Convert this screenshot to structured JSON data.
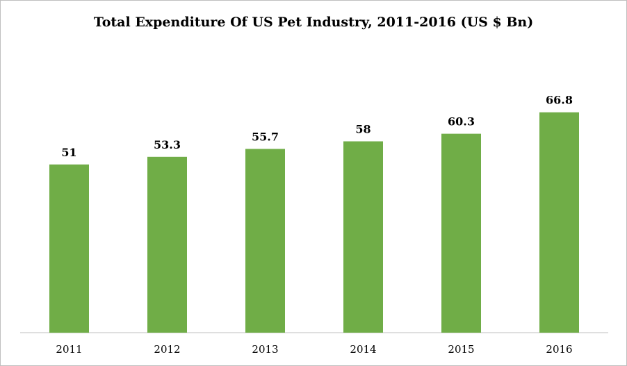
{
  "chart_data": {
    "type": "bar",
    "title": "Total Expenditure Of US Pet Industry, 2011-2016 (US $ Bn)",
    "categories": [
      "2011",
      "2012",
      "2013",
      "2014",
      "2015",
      "2016"
    ],
    "values": [
      51,
      53.3,
      55.7,
      58,
      60.3,
      66.8
    ],
    "data_labels": [
      "51",
      "53.3",
      "55.7",
      "58",
      "60.3",
      "66.8"
    ],
    "bar_color": "#70ad47",
    "axis_color": "#bfbfbf",
    "ylim": [
      0,
      70
    ],
    "grid": false,
    "legend": false,
    "xlabel": "",
    "ylabel": ""
  }
}
